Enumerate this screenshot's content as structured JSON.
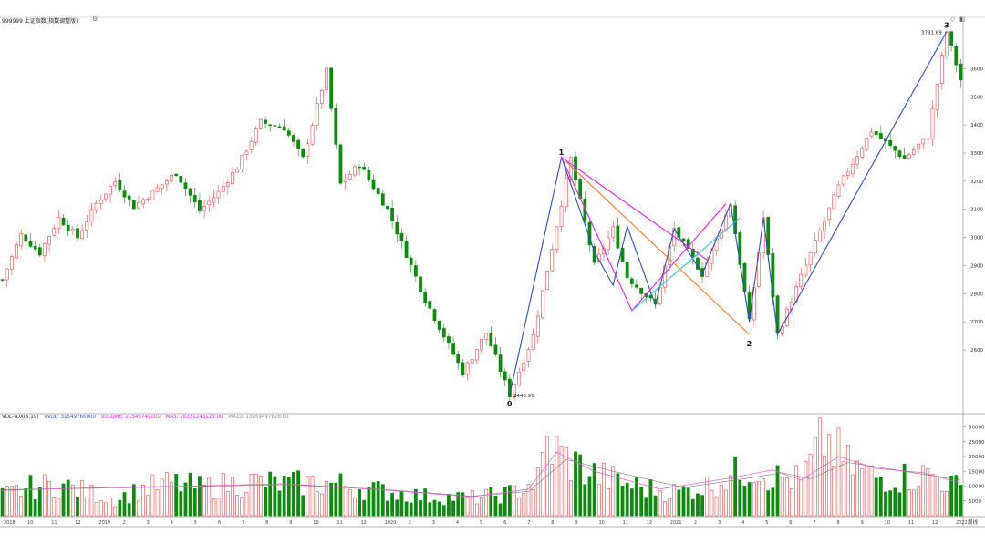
{
  "header": {
    "title": "999999 上证指数(指数调整版)",
    "settings_icon": "gear-icon",
    "tool_icons": [
      "diamond-icon",
      "panel-icon"
    ]
  },
  "volume_legend": {
    "name": "VOL-TDX(5,10)",
    "vvol": "VVOL: 31549766000",
    "volume": "VOLUME: 21549749000",
    "ma5": "MA5: 16331243129.00",
    "ma10": "MA10: 13659497628.00"
  },
  "colors": {
    "up": "#e8474b",
    "down": "#0f8a0f",
    "wave_blue": "#2d4fb5",
    "wave_orange": "#ef7c27",
    "wave_magenta": "#e21ee2",
    "wave_cyan": "#33c6d6",
    "ma_pink": "#e05ad0"
  },
  "chart_data": [
    {
      "type": "candlestick",
      "ylim": [
        2380,
        3760
      ],
      "yticks": [
        "3600",
        "3500",
        "3400",
        "3300",
        "3200",
        "3100",
        "3000",
        "2900",
        "2800",
        "2700",
        "2600"
      ],
      "ytick_values": [
        3600,
        3500,
        3400,
        3300,
        3200,
        3100,
        3000,
        2900,
        2800,
        2700,
        2600
      ],
      "num_bars": 205,
      "anchors": [
        [
          0,
          2850
        ],
        [
          4,
          3010
        ],
        [
          8,
          2945
        ],
        [
          12,
          3070
        ],
        [
          16,
          3000
        ],
        [
          20,
          3120
        ],
        [
          24,
          3200
        ],
        [
          28,
          3110
        ],
        [
          32,
          3160
        ],
        [
          37,
          3230
        ],
        [
          42,
          3095
        ],
        [
          46,
          3160
        ],
        [
          50,
          3250
        ],
        [
          55,
          3410
        ],
        [
          60,
          3390
        ],
        [
          64,
          3280
        ],
        [
          69,
          3590
        ],
        [
          72,
          3190
        ],
        [
          76,
          3260
        ],
        [
          82,
          3100
        ],
        [
          90,
          2780
        ],
        [
          98,
          2520
        ],
        [
          103,
          2660
        ],
        [
          108,
          2440.91
        ],
        [
          113,
          2650
        ],
        [
          121,
          3280
        ],
        [
          126,
          2900
        ],
        [
          130,
          3030
        ],
        [
          133,
          2860
        ],
        [
          139,
          2760
        ],
        [
          143,
          3030
        ],
        [
          149,
          2870
        ],
        [
          155,
          3120
        ],
        [
          159,
          2700
        ],
        [
          162,
          3070
        ],
        [
          165,
          2655
        ],
        [
          170,
          2860
        ],
        [
          178,
          3180
        ],
        [
          185,
          3380
        ],
        [
          192,
          3280
        ],
        [
          197,
          3360
        ],
        [
          201,
          3731.69
        ],
        [
          204,
          3560
        ]
      ],
      "annotations": [
        {
          "label": "0",
          "index": 108,
          "value": 2440.91,
          "text": "2440.91"
        },
        {
          "label": "1",
          "index": 119,
          "value": 3280
        },
        {
          "label": "2",
          "index": 159,
          "value": 2655
        },
        {
          "label": "3",
          "index": 201,
          "value": 3731.69,
          "text": "3731.69"
        }
      ],
      "wave_lines": [
        {
          "color": "wave_blue",
          "points": [
            [
              108,
              2440.91
            ],
            [
              119,
              3285
            ],
            [
              126,
              2950
            ],
            [
              130,
              2830
            ],
            [
              133,
              3040
            ],
            [
              139,
              2760
            ],
            [
              143,
              3030
            ],
            [
              149,
              2870
            ],
            [
              155,
              3120
            ],
            [
              159,
              2700
            ],
            [
              162,
              3070
            ],
            [
              165,
              2655
            ],
            [
              201,
              3731.69
            ]
          ]
        },
        {
          "color": "wave_orange",
          "points": [
            [
              120,
              3270
            ],
            [
              159,
              2655
            ]
          ]
        },
        {
          "color": "wave_magenta",
          "points": [
            [
              119,
              3285
            ],
            [
              134,
              2740
            ],
            [
              154,
              3120
            ]
          ]
        },
        {
          "color": "wave_magenta",
          "points": [
            [
              119,
              3285
            ],
            [
              150,
              2920
            ]
          ]
        },
        {
          "color": "wave_cyan",
          "points": [
            [
              134,
              2740
            ],
            [
              157,
              3070
            ]
          ]
        }
      ],
      "xticks": [
        "2018",
        "10",
        "11",
        "12",
        "2019",
        "2",
        "3",
        "4",
        "5",
        "6",
        "7",
        "8",
        "9",
        "10",
        "11",
        "12",
        "2020",
        "2",
        "3",
        "4",
        "5",
        "6",
        "7",
        "8",
        "9",
        "10",
        "11",
        "12",
        "2021",
        "2",
        "3",
        "4",
        "5",
        "6",
        "7",
        "8",
        "9",
        "10",
        "11",
        "12",
        "2022"
      ],
      "xaxis_label": "周线"
    },
    {
      "type": "bar",
      "name": "volume",
      "ylim": [
        0,
        32000
      ],
      "yticks": [
        "30000",
        "25000",
        "20000",
        "15000",
        "10000",
        "5000"
      ],
      "ytick_values": [
        30000,
        25000,
        20000,
        15000,
        10000,
        5000
      ],
      "anchors": [
        [
          0,
          7000
        ],
        [
          6,
          9500
        ],
        [
          12,
          10500
        ],
        [
          18,
          8000
        ],
        [
          24,
          5500
        ],
        [
          30,
          9000
        ],
        [
          36,
          11000
        ],
        [
          42,
          9500
        ],
        [
          48,
          10500
        ],
        [
          54,
          11500
        ],
        [
          60,
          10500
        ],
        [
          66,
          11000
        ],
        [
          72,
          10500
        ],
        [
          80,
          8500
        ],
        [
          90,
          6500
        ],
        [
          100,
          6000
        ],
        [
          108,
          7500
        ],
        [
          114,
          12000
        ],
        [
          116,
          24000
        ],
        [
          120,
          19000
        ],
        [
          126,
          14000
        ],
        [
          132,
          11000
        ],
        [
          138,
          9000
        ],
        [
          144,
          8000
        ],
        [
          150,
          10000
        ],
        [
          156,
          14000
        ],
        [
          160,
          17000
        ],
        [
          164,
          13000
        ],
        [
          170,
          12000
        ],
        [
          175,
          26000
        ],
        [
          180,
          17000
        ],
        [
          186,
          13000
        ],
        [
          192,
          13000
        ],
        [
          198,
          14000
        ],
        [
          204,
          9000
        ]
      ],
      "ma5_anchors": [
        [
          0,
          8500
        ],
        [
          20,
          9500
        ],
        [
          40,
          10000
        ],
        [
          60,
          10800
        ],
        [
          80,
          8800
        ],
        [
          100,
          6400
        ],
        [
          112,
          9000
        ],
        [
          118,
          21500
        ],
        [
          126,
          15000
        ],
        [
          140,
          9000
        ],
        [
          156,
          13000
        ],
        [
          164,
          15500
        ],
        [
          170,
          12000
        ],
        [
          178,
          20000
        ],
        [
          186,
          16000
        ],
        [
          196,
          14500
        ],
        [
          204,
          11000
        ]
      ],
      "ma10_anchors": [
        [
          0,
          8800
        ],
        [
          20,
          9300
        ],
        [
          40,
          9800
        ],
        [
          60,
          10500
        ],
        [
          80,
          9000
        ],
        [
          100,
          6600
        ],
        [
          112,
          8200
        ],
        [
          120,
          19000
        ],
        [
          130,
          15000
        ],
        [
          145,
          9500
        ],
        [
          158,
          12500
        ],
        [
          166,
          14500
        ],
        [
          172,
          12500
        ],
        [
          180,
          18000
        ],
        [
          190,
          15500
        ],
        [
          204,
          12000
        ]
      ]
    }
  ]
}
